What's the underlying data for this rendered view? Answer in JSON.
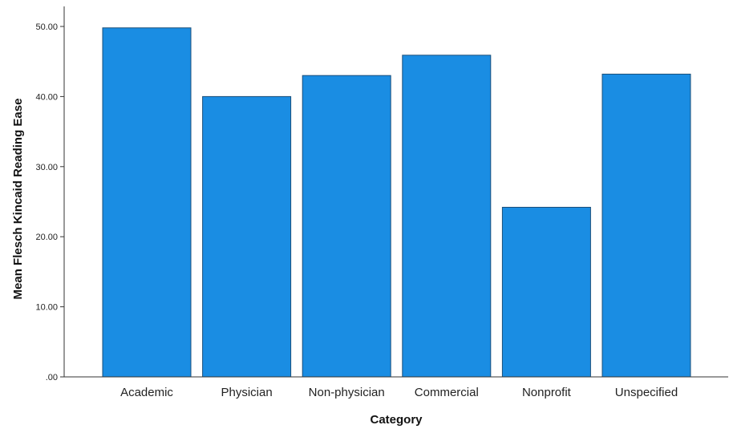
{
  "chart_data": {
    "type": "bar",
    "xlabel": "Category",
    "ylabel": "Mean Flesch Kincaid Reading Ease",
    "categories": [
      "Academic",
      "Physician",
      "Non-physician",
      "Commercial",
      "Nonprofit",
      "Unspecified"
    ],
    "values": [
      49.8,
      40.0,
      43.0,
      45.9,
      24.2,
      43.2
    ],
    "ylim": [
      0,
      50
    ],
    "yticks": [
      0,
      10,
      20,
      30,
      40,
      50
    ],
    "ytick_labels": [
      ".00",
      "10.00",
      "20.00",
      "30.00",
      "40.00",
      "50.00"
    ],
    "grid": false,
    "legend": "none",
    "bar_color": "#1a8de3",
    "bar_edge_color": "#1b4f7a",
    "axis_color": "#333333"
  }
}
